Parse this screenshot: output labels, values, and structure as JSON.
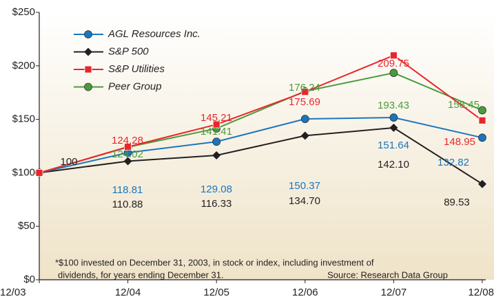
{
  "chart_data": {
    "type": "line",
    "categories": [
      "12/03",
      "12/04",
      "12/05",
      "12/06",
      "12/07",
      "12/08"
    ],
    "ylim": [
      0,
      250
    ],
    "yticks": [
      {
        "value": 0,
        "label": "$0"
      },
      {
        "value": 50,
        "label": "$50"
      },
      {
        "value": 100,
        "label": "$100"
      },
      {
        "value": 150,
        "label": "$150"
      },
      {
        "value": 200,
        "label": "$200"
      },
      {
        "value": 250,
        "label": "$250"
      }
    ],
    "series": [
      {
        "name": "AGL Resources Inc.",
        "color": "#1b75bc",
        "marker": "circle",
        "values": [
          100,
          118.81,
          129.08,
          150.37,
          151.64,
          132.82
        ],
        "value_labels": [
          null,
          "118.81",
          "129.08",
          "150.37",
          "151.64",
          "132.82"
        ]
      },
      {
        "name": "S&P 500",
        "color": "#231f20",
        "marker": "diamond",
        "values": [
          100,
          110.88,
          116.33,
          134.7,
          142.1,
          89.53
        ],
        "value_labels": [
          "100",
          "110.88",
          "116.33",
          "134.70",
          "142.10",
          "89.53"
        ]
      },
      {
        "name": "S&P Utilities",
        "color": "#e8262b",
        "marker": "square",
        "values": [
          100,
          124.28,
          145.21,
          175.69,
          209.75,
          148.95
        ],
        "value_labels": [
          null,
          "124.28",
          "145.21",
          "175.69",
          "209.75",
          "148.95"
        ]
      },
      {
        "name": "Peer Group",
        "color": "#4b9b3a",
        "marker": "circle",
        "values": [
          100,
          124.02,
          141.41,
          176.24,
          193.43,
          158.45
        ],
        "value_labels": [
          null,
          "124.02",
          "141.41",
          "176.24",
          "193.43",
          "158.45"
        ]
      }
    ],
    "notes": [
      "*$100 invested on December 31, 2003, in stock or index, including investment of",
      "dividends, for years ending December 31.",
      "Source: Research Data Group"
    ]
  }
}
